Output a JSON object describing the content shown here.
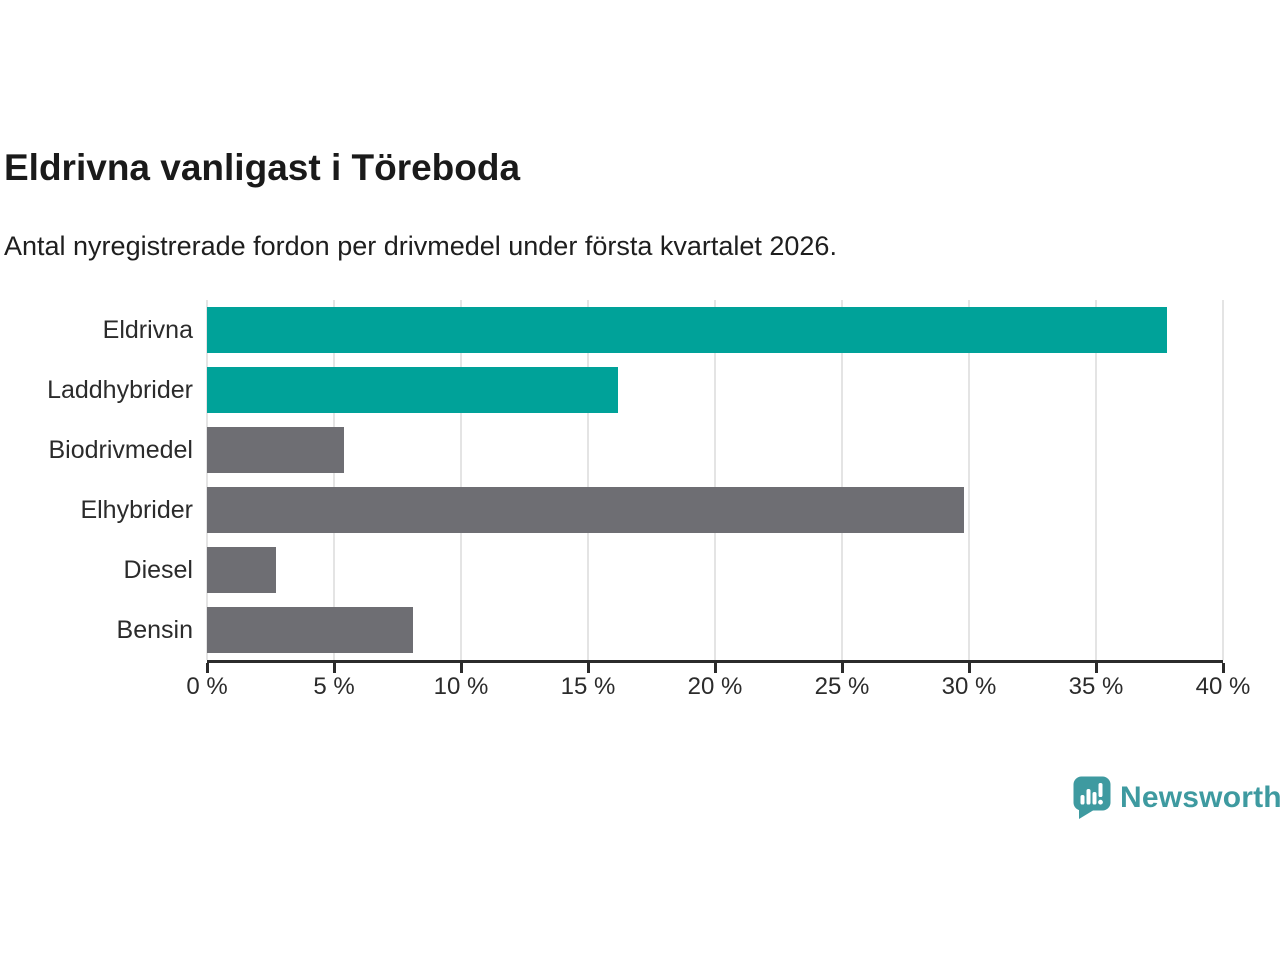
{
  "header": {
    "title": "Eldrivna vanligast i Töreboda",
    "subtitle": "Antal nyregistrerade fordon per drivmedel under första kvartalet 2026."
  },
  "chart_data": {
    "type": "bar",
    "orientation": "horizontal",
    "title": "Eldrivna vanligast i Töreboda",
    "subtitle": "Antal nyregistrerade fordon per drivmedel under första kvartalet 2026.",
    "categories": [
      "Eldrivna",
      "Laddhybrider",
      "Biodrivmedel",
      "Elhybrider",
      "Diesel",
      "Bensin"
    ],
    "values": [
      37.8,
      16.2,
      5.4,
      29.8,
      2.7,
      8.1
    ],
    "unit": "%",
    "xlim": [
      0,
      40
    ],
    "x_ticks": [
      0,
      5,
      10,
      15,
      20,
      25,
      30,
      35,
      40
    ],
    "x_tick_labels": [
      "0 %",
      "5 %",
      "10 %",
      "15 %",
      "20 %",
      "25 %",
      "30 %",
      "35 %",
      "40 %"
    ],
    "grid": true,
    "legend": "none",
    "bar_colors": [
      "#00a299",
      "#00a299",
      "#6e6e73",
      "#6e6e73",
      "#6e6e73",
      "#6e6e73"
    ],
    "highlight_color": "#00a299",
    "default_color": "#6e6e73",
    "gridline_color": "#e4e4e4",
    "axis_color": "#2b2b2b"
  },
  "footer": {
    "brand": "Newsworthy",
    "brand_color": "#3e9aa0",
    "logo_icon": "bar-chart-speech-bubble-icon"
  }
}
